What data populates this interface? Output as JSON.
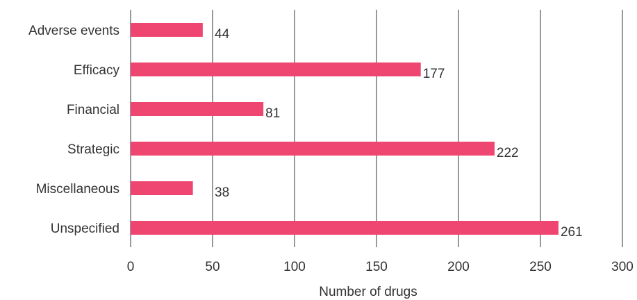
{
  "chart_data": {
    "type": "bar",
    "orientation": "horizontal",
    "categories": [
      "Adverse events",
      "Efficacy",
      "Financial",
      "Strategic",
      "Miscellaneous",
      "Unspecified"
    ],
    "values": [
      44,
      177,
      81,
      222,
      38,
      261
    ],
    "title": "",
    "xlabel": "Number of drugs",
    "ylabel": "",
    "xlim": [
      0,
      300
    ],
    "xticks": [
      0,
      50,
      100,
      150,
      200,
      250,
      300
    ],
    "grid": "vertical",
    "bar_color": "#ee4670",
    "grid_color": "#333333"
  }
}
